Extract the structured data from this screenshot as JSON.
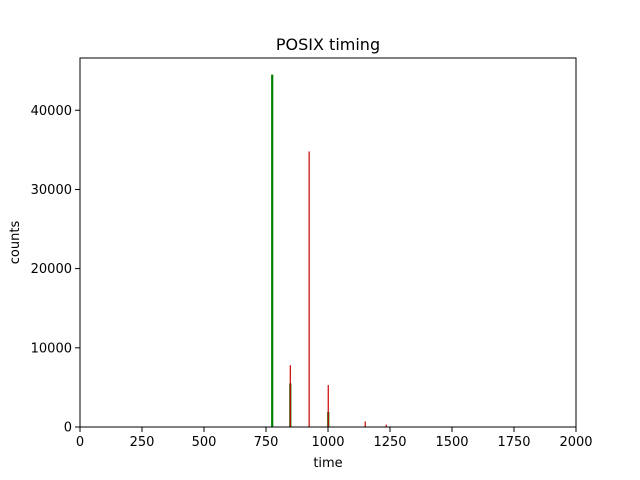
{
  "chart_data": {
    "type": "bar",
    "title": "POSIX timing",
    "xlabel": "time",
    "ylabel": "counts",
    "xlim": [
      0,
      2000
    ],
    "ylim": [
      0,
      46600
    ],
    "xticks": [
      0,
      250,
      500,
      750,
      1000,
      1250,
      1500,
      1750,
      2000
    ],
    "yticks": [
      0,
      10000,
      20000,
      30000,
      40000
    ],
    "grid": false,
    "legend": "none",
    "series": [
      {
        "color": "#008000",
        "points": [
          {
            "x": 775,
            "y": 44500
          },
          {
            "x": 848,
            "y": 5500
          },
          {
            "x": 1001,
            "y": 1900
          }
        ]
      },
      {
        "color": "#cc0000",
        "points": [
          {
            "x": 848,
            "y": 7800
          },
          {
            "x": 924,
            "y": 34800
          },
          {
            "x": 1001,
            "y": 5300
          },
          {
            "x": 1150,
            "y": 700
          },
          {
            "x": 1235,
            "y": 300
          }
        ]
      }
    ]
  }
}
